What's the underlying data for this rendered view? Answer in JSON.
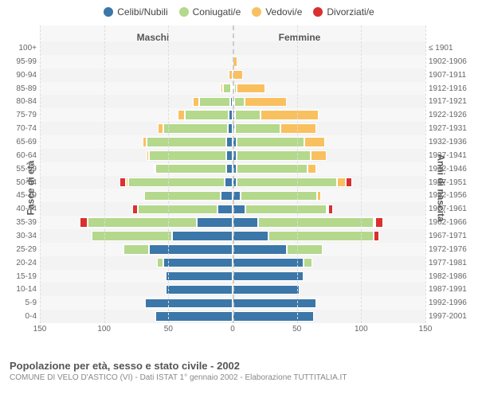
{
  "legend": [
    {
      "label": "Celibi/Nubili",
      "color": "#3b77a8"
    },
    {
      "label": "Coniugati/e",
      "color": "#b4d88c"
    },
    {
      "label": "Vedovi/e",
      "color": "#f9c060"
    },
    {
      "label": "Divorziati/e",
      "color": "#d93030"
    }
  ],
  "headers": {
    "left": "Maschi",
    "right": "Femmine"
  },
  "y_left_title": "Fasce di età",
  "y_right_title": "Anni di nascita",
  "footer": {
    "title": "Popolazione per età, sesso e stato civile - 2002",
    "sub": "COMUNE DI VELO D'ASTICO (VI) - Dati ISTAT 1° gennaio 2002 - Elaborazione TUTTITALIA.IT"
  },
  "axis": {
    "max": 150,
    "ticks": [
      150,
      100,
      50,
      0,
      50,
      100,
      150
    ]
  },
  "rows": [
    {
      "age": "100+",
      "birth": "≤ 1901",
      "m": [
        0,
        0,
        0,
        0
      ],
      "f": [
        0,
        0,
        0,
        0
      ]
    },
    {
      "age": "95-99",
      "birth": "1902-1906",
      "m": [
        0,
        0,
        0,
        0
      ],
      "f": [
        0,
        0,
        4,
        0
      ]
    },
    {
      "age": "90-94",
      "birth": "1907-1911",
      "m": [
        0,
        0,
        3,
        0
      ],
      "f": [
        0,
        0,
        8,
        0
      ]
    },
    {
      "age": "85-89",
      "birth": "1912-1916",
      "m": [
        1,
        6,
        2,
        0
      ],
      "f": [
        1,
        2,
        22,
        0
      ]
    },
    {
      "age": "80-84",
      "birth": "1917-1921",
      "m": [
        2,
        24,
        5,
        0
      ],
      "f": [
        1,
        8,
        33,
        0
      ]
    },
    {
      "age": "75-79",
      "birth": "1922-1926",
      "m": [
        3,
        34,
        6,
        0
      ],
      "f": [
        2,
        20,
        45,
        0
      ]
    },
    {
      "age": "70-74",
      "birth": "1927-1931",
      "m": [
        4,
        50,
        4,
        0
      ],
      "f": [
        2,
        35,
        28,
        0
      ]
    },
    {
      "age": "65-69",
      "birth": "1932-1936",
      "m": [
        5,
        62,
        3,
        0
      ],
      "f": [
        3,
        53,
        16,
        0
      ]
    },
    {
      "age": "60-64",
      "birth": "1937-1941",
      "m": [
        5,
        60,
        2,
        0
      ],
      "f": [
        3,
        58,
        12,
        0
      ]
    },
    {
      "age": "55-59",
      "birth": "1942-1946",
      "m": [
        5,
        55,
        1,
        0
      ],
      "f": [
        3,
        55,
        7,
        0
      ]
    },
    {
      "age": "50-54",
      "birth": "1947-1951",
      "m": [
        6,
        75,
        2,
        5
      ],
      "f": [
        3,
        78,
        7,
        5
      ]
    },
    {
      "age": "45-49",
      "birth": "1952-1956",
      "m": [
        9,
        60,
        0,
        0
      ],
      "f": [
        6,
        60,
        3,
        0
      ]
    },
    {
      "age": "40-44",
      "birth": "1957-1961",
      "m": [
        12,
        62,
        0,
        4
      ],
      "f": [
        10,
        63,
        1,
        4
      ]
    },
    {
      "age": "35-39",
      "birth": "1962-1966",
      "m": [
        28,
        85,
        0,
        6
      ],
      "f": [
        20,
        90,
        1,
        6
      ]
    },
    {
      "age": "30-34",
      "birth": "1967-1971",
      "m": [
        47,
        63,
        0,
        0
      ],
      "f": [
        28,
        82,
        0,
        4
      ]
    },
    {
      "age": "25-29",
      "birth": "1972-1976",
      "m": [
        65,
        20,
        0,
        0
      ],
      "f": [
        42,
        28,
        0,
        0
      ]
    },
    {
      "age": "20-24",
      "birth": "1977-1981",
      "m": [
        54,
        5,
        0,
        0
      ],
      "f": [
        55,
        7,
        0,
        0
      ]
    },
    {
      "age": "15-19",
      "birth": "1982-1986",
      "m": [
        52,
        0,
        0,
        0
      ],
      "f": [
        55,
        0,
        0,
        0
      ]
    },
    {
      "age": "10-14",
      "birth": "1987-1991",
      "m": [
        52,
        0,
        0,
        0
      ],
      "f": [
        52,
        0,
        0,
        0
      ]
    },
    {
      "age": "5-9",
      "birth": "1992-1996",
      "m": [
        68,
        0,
        0,
        0
      ],
      "f": [
        65,
        0,
        0,
        0
      ]
    },
    {
      "age": "0-4",
      "birth": "1997-2001",
      "m": [
        60,
        0,
        0,
        0
      ],
      "f": [
        63,
        0,
        0,
        0
      ]
    }
  ],
  "style": {
    "background": "#ffffff",
    "plot_bg": "#f7f7f7",
    "grid_color": "#dddddd",
    "centerline_color": "#cccccc",
    "text_color": "#666666",
    "header_color": "#555555",
    "label_fontsize": 10,
    "header_fontsize": 12,
    "footer_title_fontsize": 13
  }
}
